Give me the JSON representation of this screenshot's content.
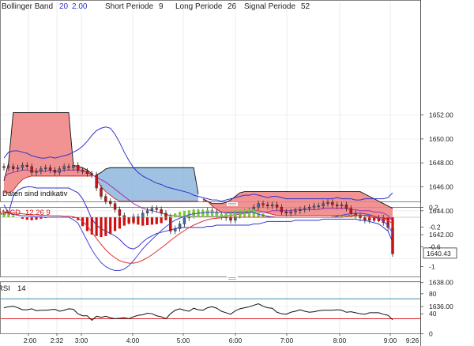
{
  "legend": {
    "bollinger": {
      "label": "Bollinger Band",
      "p1": "20",
      "p2": "2.00"
    },
    "short": {
      "label": "Short Periode",
      "value": "9"
    },
    "long": {
      "label": "Long Periode",
      "value": "26"
    },
    "signal": {
      "label": "Signal Periode",
      "value": "52"
    }
  },
  "status_text": "Daten sind indikativ",
  "macd_label": {
    "name": "MACD",
    "params": "12 26 9"
  },
  "rsi_label": {
    "name": "RSI",
    "value": "14"
  },
  "last_price_tag": "1640.43",
  "colors": {
    "up_candle": "#3a6fa8",
    "down_candle": "#cc1111",
    "bb_band": "#3333cc",
    "bb_mid": "#9933aa",
    "cloud_red": "#f08080",
    "cloud_blue": "#8fb7dd",
    "macd_pos": "#77cc33",
    "macd_neg": "#cc1111",
    "rsi_line": "#111111",
    "rsi_upper": "#3a8fa8",
    "rsi_lower": "#dd2222"
  },
  "chart_data": [
    {
      "type": "candlestick",
      "name": "price",
      "x_ticks": [
        "2:00",
        "2:32",
        "3:00",
        "4:00",
        "5:00",
        "6:00",
        "7:00",
        "8:00",
        "9:00",
        "9:26"
      ],
      "y_ticks": [
        "1636.00",
        "1638.00",
        "1640.43",
        "1642.00",
        "1644.00",
        "1646.00",
        "1648.00",
        "1650.00",
        "1652.00"
      ],
      "ylim": [
        1635.2,
        1652.2
      ],
      "last": 1640.43,
      "close": [
        1647.6,
        1647.7,
        1647.5,
        1647.6,
        1647.8,
        1647.7,
        1647.2,
        1647.3,
        1647.5,
        1647.6,
        1647.4,
        1647.2,
        1647.5,
        1647.7,
        1647.6,
        1647.8,
        1647.4,
        1647.3,
        1647.1,
        1647.0,
        1645.9,
        1645.2,
        1644.8,
        1644.6,
        1644.1,
        1643.6,
        1643.2,
        1643.1,
        1643.5,
        1643.4,
        1643.8,
        1644.0,
        1644.2,
        1644.1,
        1643.8,
        1643.5,
        1642.3,
        1642.5,
        1642.9,
        1643.4,
        1643.6,
        1643.9,
        1643.9,
        1643.8,
        1644.0,
        1643.9,
        1643.6,
        1643.5,
        1643.4,
        1643.2,
        1643.6,
        1643.8,
        1643.9,
        1644.0,
        1644.3,
        1644.6,
        1644.5,
        1644.4,
        1644.5,
        1644.3,
        1643.9,
        1643.8,
        1643.9,
        1644.0,
        1644.1,
        1644.2,
        1644.3,
        1644.4,
        1644.4,
        1644.6,
        1644.7,
        1644.5,
        1644.4,
        1644.5,
        1644.2,
        1643.8,
        1643.6,
        1643.4,
        1643.2,
        1643.3,
        1643.3,
        1643.4,
        1643.0,
        1642.6,
        1640.4
      ],
      "bb_upper": [
        1648.4,
        1648.9,
        1649.0,
        1649.0,
        1648.9,
        1648.8,
        1648.6,
        1648.5,
        1648.4,
        1648.4,
        1648.5,
        1648.4,
        1648.5,
        1648.6,
        1648.7,
        1648.9,
        1649.1,
        1649.4,
        1649.8,
        1650.3,
        1650.7,
        1650.9,
        1651.0,
        1650.9,
        1650.4,
        1649.7,
        1648.9,
        1648.2,
        1647.6,
        1647.2,
        1646.9,
        1646.7,
        1646.5,
        1646.3,
        1646.2,
        1646.0,
        1645.9,
        1645.8,
        1645.7,
        1645.6,
        1645.5,
        1645.3,
        1645.2,
        1645.1,
        1645.0,
        1644.9,
        1644.9,
        1644.8,
        1644.9,
        1645.0,
        1645.1,
        1645.2,
        1645.3,
        1645.3,
        1645.4,
        1645.3,
        1645.2,
        1645.1,
        1645.2,
        1645.2,
        1645.1,
        1645.0,
        1645.0,
        1645.0,
        1645.0,
        1645.0,
        1645.0,
        1645.0,
        1645.0,
        1645.0,
        1645.0,
        1645.0,
        1645.1,
        1645.0,
        1645.0,
        1645.0,
        1644.9,
        1644.9,
        1645.0,
        1645.0,
        1645.0,
        1645.0,
        1645.0,
        1645.1,
        1645.5
      ],
      "bb_mid": [
        1646.8,
        1647.1,
        1647.2,
        1647.3,
        1647.4,
        1647.4,
        1647.3,
        1647.3,
        1647.3,
        1647.3,
        1647.4,
        1647.3,
        1647.3,
        1647.4,
        1647.4,
        1647.4,
        1647.4,
        1647.3,
        1647.2,
        1647.0,
        1646.8,
        1646.6,
        1646.4,
        1646.1,
        1645.8,
        1645.5,
        1645.2,
        1644.9,
        1644.6,
        1644.4,
        1644.2,
        1644.1,
        1644.0,
        1643.9,
        1643.8,
        1643.7,
        1643.6,
        1643.6,
        1643.5,
        1643.5,
        1643.5,
        1643.5,
        1643.5,
        1643.5,
        1643.5,
        1643.5,
        1643.5,
        1643.5,
        1643.6,
        1643.6,
        1643.7,
        1643.7,
        1643.8,
        1643.8,
        1643.9,
        1643.9,
        1643.9,
        1643.9,
        1644.0,
        1644.0,
        1644.0,
        1644.0,
        1644.0,
        1644.1,
        1644.1,
        1644.1,
        1644.1,
        1644.1,
        1644.1,
        1644.2,
        1644.2,
        1644.2,
        1644.2,
        1644.2,
        1644.2,
        1644.1,
        1644.1,
        1644.0,
        1644.0,
        1644.0,
        1643.9,
        1643.9,
        1643.8,
        1643.6,
        1643.2
      ],
      "bb_lower": [
        1644.5,
        1643.8,
        1645.2,
        1645.7,
        1645.9,
        1646.0,
        1646.0,
        1645.9,
        1645.9,
        1645.9,
        1645.9,
        1645.9,
        1645.9,
        1645.9,
        1645.9,
        1645.7,
        1645.5,
        1645.0,
        1644.2,
        1643.3,
        1642.8,
        1642.5,
        1642.3,
        1642.1,
        1641.9,
        1641.6,
        1641.2,
        1640.9,
        1640.8,
        1641.0,
        1641.4,
        1641.7,
        1641.9,
        1642.1,
        1642.2,
        1642.3,
        1642.4,
        1642.5,
        1642.6,
        1642.6,
        1642.6,
        1642.6,
        1642.6,
        1642.6,
        1642.7,
        1642.7,
        1642.8,
        1642.8,
        1642.8,
        1642.8,
        1642.8,
        1642.8,
        1642.8,
        1642.8,
        1642.9,
        1642.9,
        1643.0,
        1643.1,
        1643.1,
        1643.1,
        1643.1,
        1643.1,
        1643.1,
        1643.2,
        1643.2,
        1643.2,
        1643.2,
        1643.2,
        1643.2,
        1643.3,
        1643.3,
        1643.3,
        1643.3,
        1643.3,
        1643.3,
        1643.3,
        1643.3,
        1643.2,
        1643.2,
        1643.1,
        1643.0,
        1642.9,
        1642.6,
        1642.3,
        1641.4
      ],
      "cloud_top": [
        1646.5,
        1648.0,
        1652.2,
        1652.2,
        1652.2,
        1652.2,
        1652.2,
        1652.2,
        1652.2,
        1652.2,
        1652.2,
        1652.2,
        1652.2,
        1652.2,
        1652.2,
        1647.8,
        1647.7,
        1647.6,
        1647.4,
        1647.1,
        1647.0,
        1647.2,
        1647.5,
        1647.6,
        1647.6,
        1647.6,
        1647.6,
        1647.6,
        1647.6,
        1647.6,
        1647.6,
        1647.6,
        1647.6,
        1647.6,
        1647.6,
        1647.6,
        1647.6,
        1647.6,
        1647.6,
        1647.6,
        1647.6,
        1647.6,
        1645.4,
        1645.0,
        1644.8,
        1644.6,
        1644.6,
        1644.6,
        1644.7,
        1644.9,
        1645.2,
        1645.5,
        1645.6,
        1645.6,
        1645.6,
        1645.6,
        1645.6,
        1645.6,
        1645.6,
        1645.6,
        1645.6,
        1645.6,
        1645.6,
        1645.6,
        1645.6,
        1645.6,
        1645.6,
        1645.6,
        1645.6,
        1645.6,
        1645.6,
        1645.6,
        1645.6,
        1645.6,
        1645.6,
        1645.6,
        1645.6,
        1645.6,
        1645.4,
        1645.2,
        1645.0,
        1644.8,
        1644.6,
        1644.4,
        1644.2
      ],
      "cloud_bottom": [
        1645.5,
        1645.5,
        1645.7,
        1646.2,
        1646.6,
        1646.8,
        1646.9,
        1646.9,
        1646.9,
        1646.9,
        1646.9,
        1646.9,
        1646.9,
        1646.9,
        1646.9,
        1646.9,
        1646.9,
        1646.9,
        1646.9,
        1646.9,
        1646.6,
        1646.0,
        1645.6,
        1645.3,
        1645.0,
        1644.8,
        1644.8,
        1644.8,
        1644.8,
        1644.8,
        1644.8,
        1644.8,
        1644.8,
        1644.8,
        1644.8,
        1644.8,
        1644.8,
        1644.8,
        1644.8,
        1644.8,
        1644.8,
        1644.8,
        1644.8,
        1644.8,
        1644.8,
        1644.4,
        1644.1,
        1643.9,
        1643.8,
        1643.8,
        1643.8,
        1643.8,
        1643.9,
        1643.9,
        1644.0,
        1644.0,
        1643.9,
        1643.8,
        1643.7,
        1643.6,
        1643.6,
        1643.6,
        1643.6,
        1643.6,
        1643.6,
        1643.6,
        1643.6,
        1643.6,
        1643.6,
        1643.6,
        1643.6,
        1643.6,
        1643.6,
        1643.6,
        1643.6,
        1643.6,
        1643.6,
        1643.6,
        1643.6,
        1643.5,
        1643.4,
        1643.4,
        1643.4,
        1643.3,
        1643.3
      ],
      "cloud_color_split": [
        0,
        19,
        "red",
        20,
        42,
        "blue",
        43,
        84,
        "red"
      ]
    },
    {
      "type": "bar+line",
      "name": "MACD",
      "y_ticks": [
        "0.2",
        "-0.2",
        "-0.6",
        "-1"
      ],
      "ylim": [
        -1.22,
        0.32
      ],
      "histogram": [
        0.09,
        0.08,
        0.04,
        0.0,
        -0.03,
        -0.05,
        -0.06,
        -0.05,
        -0.03,
        -0.01,
        0.0,
        0.0,
        0.0,
        0.0,
        0.0,
        -0.01,
        -0.06,
        -0.18,
        -0.28,
        -0.35,
        -0.38,
        -0.4,
        -0.38,
        -0.34,
        -0.28,
        -0.23,
        -0.17,
        -0.13,
        -0.12,
        -0.15,
        -0.17,
        -0.16,
        -0.15,
        -0.14,
        -0.12,
        -0.06,
        0.03,
        0.08,
        0.11,
        0.13,
        0.14,
        0.15,
        0.15,
        0.14,
        0.14,
        0.13,
        0.1,
        0.07,
        0.09,
        0.12,
        0.14,
        0.15,
        0.16,
        0.17,
        0.16,
        0.13,
        0.08,
        0.03,
        0.0,
        0.0,
        0.0,
        0.0,
        0.0,
        0.0,
        0.0,
        0.0,
        0.0,
        0.0,
        0.0,
        0.01,
        0.01,
        0.02,
        0.03,
        0.04,
        0.05,
        0.05,
        0.04,
        0.0,
        -0.02,
        -0.05,
        -0.07,
        -0.08,
        -0.1,
        -0.11,
        -0.2
      ],
      "macd_line": [
        0.1,
        0.09,
        0.06,
        0.04,
        0.03,
        0.03,
        0.02,
        0.01,
        0.01,
        0.0,
        0.0,
        0.0,
        0.0,
        0.0,
        0.0,
        -0.05,
        -0.12,
        -0.3,
        -0.48,
        -0.66,
        -0.8,
        -0.92,
        -1.0,
        -1.05,
        -1.08,
        -1.08,
        -1.05,
        -0.98,
        -0.88,
        -0.76,
        -0.64,
        -0.54,
        -0.45,
        -0.36,
        -0.27,
        -0.19,
        -0.12,
        -0.06,
        -0.02,
        0.02,
        0.05,
        0.07,
        0.08,
        0.09,
        0.1,
        0.1,
        0.1,
        0.1,
        0.1,
        0.1,
        0.1,
        0.1,
        0.1,
        0.1,
        0.09,
        0.06,
        0.04,
        0.02,
        0.01,
        0.0,
        0.0,
        0.0,
        0.0,
        0.0,
        0.0,
        0.0,
        0.0,
        0.0,
        0.0,
        0.0,
        0.0,
        0.0,
        0.02,
        0.04,
        0.06,
        0.07,
        0.08,
        0.08,
        0.07,
        0.05,
        0.02,
        -0.02,
        -0.08,
        -0.17,
        -0.32
      ],
      "signal_line": [
        0.11,
        0.1,
        0.09,
        0.08,
        0.07,
        0.06,
        0.05,
        0.05,
        0.04,
        0.04,
        0.03,
        0.03,
        0.03,
        0.02,
        0.02,
        0.01,
        -0.02,
        -0.08,
        -0.18,
        -0.3,
        -0.43,
        -0.55,
        -0.66,
        -0.75,
        -0.82,
        -0.88,
        -0.91,
        -0.93,
        -0.93,
        -0.91,
        -0.87,
        -0.82,
        -0.76,
        -0.69,
        -0.62,
        -0.55,
        -0.47,
        -0.4,
        -0.33,
        -0.27,
        -0.21,
        -0.16,
        -0.12,
        -0.08,
        -0.05,
        -0.03,
        -0.02,
        -0.01,
        0.0,
        0.0,
        0.0,
        0.0,
        0.0,
        0.0,
        0.0,
        0.0,
        0.0,
        0.0,
        0.0,
        0.0,
        0.0,
        0.0,
        0.0,
        0.0,
        0.0,
        0.0,
        0.0,
        0.0,
        0.0,
        0.0,
        0.0,
        0.0,
        0.0,
        0.0,
        0.01,
        0.02,
        0.03,
        0.04,
        0.04,
        0.03,
        0.02,
        0.0,
        -0.03,
        -0.07,
        -0.12
      ]
    },
    {
      "type": "line",
      "name": "RSI",
      "y_ticks": [
        "80",
        "40",
        "0"
      ],
      "ylim": [
        -7,
        101
      ],
      "upper_level": 70,
      "lower_level": 30,
      "values": [
        52,
        54,
        55,
        52,
        48,
        48,
        50,
        46,
        47,
        47,
        48,
        49,
        45,
        47,
        50,
        49,
        40,
        36,
        36,
        27,
        35,
        33,
        35,
        32,
        30,
        31,
        32,
        30,
        34,
        37,
        38,
        41,
        40,
        36,
        34,
        30,
        40,
        47,
        50,
        47,
        45,
        51,
        48,
        47,
        52,
        54,
        51,
        45,
        42,
        39,
        46,
        50,
        52,
        54,
        57,
        60,
        55,
        52,
        51,
        43,
        40,
        39,
        43,
        45,
        48,
        45,
        43,
        44,
        46,
        47,
        47,
        47,
        48,
        47,
        43,
        44,
        42,
        40,
        39,
        42,
        42,
        42,
        39,
        37,
        28
      ]
    }
  ]
}
